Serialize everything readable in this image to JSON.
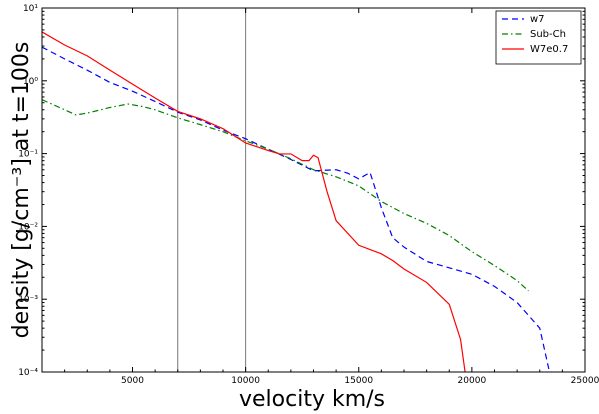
{
  "chart_data": {
    "type": "line",
    "xlabel": "velocity km/s",
    "ylabel": "density [g/cm⁻³] at t=100s",
    "xlim": [
      1000,
      25000
    ],
    "ylim_log10": [
      -4,
      1
    ],
    "yscale": "log",
    "legend_position": "top-right",
    "x_ticks": [
      5000,
      10000,
      15000,
      20000,
      25000
    ],
    "y_ticks": [
      {
        "exp": 1,
        "label": "10¹"
      },
      {
        "exp": 0,
        "label": "10⁰"
      },
      {
        "exp": -1,
        "label": "10⁻¹"
      },
      {
        "exp": -2,
        "label": "10⁻²"
      },
      {
        "exp": -3,
        "label": "10⁻³"
      },
      {
        "exp": -4,
        "label": "10⁻⁴"
      }
    ],
    "vertical_lines": [
      7000,
      10000
    ],
    "series": [
      {
        "name": "w7",
        "color": "#0000ff",
        "style": "dashed",
        "points": [
          [
            1000,
            2.9
          ],
          [
            2000,
            2.0
          ],
          [
            3000,
            1.4
          ],
          [
            4000,
            0.95
          ],
          [
            5000,
            0.72
          ],
          [
            6000,
            0.52
          ],
          [
            7000,
            0.37
          ],
          [
            8000,
            0.29
          ],
          [
            9000,
            0.21
          ],
          [
            10000,
            0.16
          ],
          [
            11000,
            0.115
          ],
          [
            12000,
            0.083
          ],
          [
            13000,
            0.058
          ],
          [
            14000,
            0.06
          ],
          [
            14500,
            0.054
          ],
          [
            15000,
            0.045
          ],
          [
            15500,
            0.055
          ],
          [
            16000,
            0.018
          ],
          [
            16500,
            0.007
          ],
          [
            17000,
            0.0052
          ],
          [
            18000,
            0.0033
          ],
          [
            19000,
            0.0027
          ],
          [
            20000,
            0.0022
          ],
          [
            21000,
            0.0015
          ],
          [
            22000,
            0.0009
          ],
          [
            23000,
            0.0004
          ],
          [
            23400,
            0.00011
          ]
        ]
      },
      {
        "name": "Sub-Ch",
        "color": "#008000",
        "style": "dashdot",
        "points": [
          [
            1000,
            0.55
          ],
          [
            2000,
            0.4
          ],
          [
            2500,
            0.34
          ],
          [
            3000,
            0.36
          ],
          [
            4000,
            0.43
          ],
          [
            4800,
            0.48
          ],
          [
            5500,
            0.44
          ],
          [
            6000,
            0.4
          ],
          [
            7000,
            0.31
          ],
          [
            8000,
            0.25
          ],
          [
            9000,
            0.2
          ],
          [
            10000,
            0.15
          ],
          [
            11000,
            0.115
          ],
          [
            12000,
            0.085
          ],
          [
            13000,
            0.06
          ],
          [
            14000,
            0.048
          ],
          [
            15000,
            0.036
          ],
          [
            16000,
            0.022
          ],
          [
            17000,
            0.015
          ],
          [
            18000,
            0.011
          ],
          [
            19000,
            0.0075
          ],
          [
            20000,
            0.0045
          ],
          [
            21000,
            0.0029
          ],
          [
            22000,
            0.0018
          ],
          [
            22500,
            0.0013
          ]
        ]
      },
      {
        "name": "W7e0.7",
        "color": "#ff0000",
        "style": "solid",
        "points": [
          [
            1000,
            4.7
          ],
          [
            2000,
            3.1
          ],
          [
            3000,
            2.2
          ],
          [
            4000,
            1.4
          ],
          [
            5000,
            0.9
          ],
          [
            6000,
            0.58
          ],
          [
            7000,
            0.38
          ],
          [
            8000,
            0.3
          ],
          [
            9000,
            0.22
          ],
          [
            10000,
            0.14
          ],
          [
            11000,
            0.11
          ],
          [
            11500,
            0.099
          ],
          [
            12000,
            0.099
          ],
          [
            12500,
            0.08
          ],
          [
            12800,
            0.08
          ],
          [
            13000,
            0.095
          ],
          [
            13200,
            0.088
          ],
          [
            13600,
            0.03
          ],
          [
            14000,
            0.012
          ],
          [
            15000,
            0.0055
          ],
          [
            16000,
            0.0042
          ],
          [
            16500,
            0.0034
          ],
          [
            17000,
            0.0026
          ],
          [
            18000,
            0.0017
          ],
          [
            19000,
            0.00085
          ],
          [
            19500,
            0.00028
          ],
          [
            19700,
            0.0001
          ]
        ]
      }
    ]
  }
}
